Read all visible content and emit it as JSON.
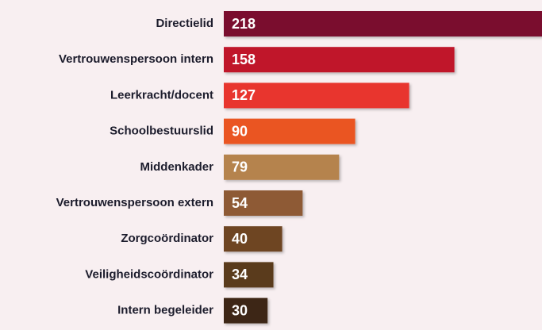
{
  "chart_data": {
    "type": "bar",
    "orientation": "horizontal",
    "categories": [
      "Directielid",
      "Vertrouwenspersoon intern",
      "Leerkracht/docent",
      "Schoolbestuurslid",
      "Middenkader",
      "Vertrouwenspersoon extern",
      "Zorgcoördinator",
      "Veiligheidscoördinator",
      "Intern begeleider"
    ],
    "values": [
      218,
      158,
      127,
      90,
      79,
      54,
      40,
      34,
      30
    ],
    "colors": [
      "#7a0f2e",
      "#c0182b",
      "#e8352e",
      "#ea5520",
      "#b5834e",
      "#8e5a34",
      "#6e4524",
      "#5a3a1a",
      "#3e2612"
    ]
  }
}
